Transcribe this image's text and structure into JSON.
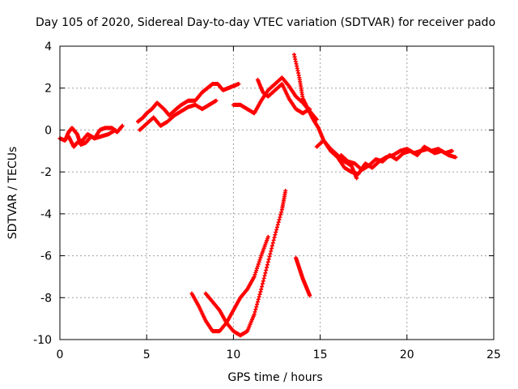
{
  "chart_data": {
    "type": "scatter",
    "title": "Day 105 of 2020, Sidereal Day-to-day VTEC variation (SDTVAR) for receiver pado",
    "xlabel": "GPS time / hours",
    "ylabel": "SDTVAR / TECUs",
    "xlim": [
      0,
      25
    ],
    "ylim": [
      -10,
      4
    ],
    "xticks": [
      0,
      5,
      10,
      15,
      20,
      25
    ],
    "yticks": [
      -10,
      -8,
      -6,
      -4,
      -2,
      0,
      2,
      4
    ],
    "grid": true,
    "marker": "plus",
    "color": "#ff0000",
    "series": [
      {
        "x": [
          0.0,
          0.3,
          0.5,
          0.7,
          1.0,
          1.2,
          1.5,
          1.8,
          2.0,
          2.3,
          2.6,
          3.0,
          3.3,
          3.6
        ],
        "y": [
          -0.4,
          -0.5,
          -0.1,
          0.1,
          -0.2,
          -0.7,
          -0.6,
          -0.3,
          -0.4,
          0.0,
          0.1,
          0.1,
          -0.1,
          0.2
        ]
      },
      {
        "x": [
          0.5,
          0.8,
          1.0,
          1.3,
          1.6,
          2.0,
          2.4,
          2.8,
          3.2
        ],
        "y": [
          -0.3,
          -0.8,
          -0.6,
          -0.5,
          -0.2,
          -0.4,
          -0.3,
          -0.2,
          0.0
        ]
      },
      {
        "x": [
          4.5,
          4.8,
          5.0,
          5.3,
          5.6,
          6.0,
          6.3,
          6.7,
          7.0,
          7.4,
          7.8,
          8.2,
          8.5,
          8.8,
          9.1,
          9.4,
          9.7,
          10.0,
          10.3
        ],
        "y": [
          0.4,
          0.6,
          0.8,
          1.0,
          1.3,
          1.0,
          0.7,
          1.0,
          1.2,
          1.4,
          1.4,
          1.8,
          2.0,
          2.2,
          2.2,
          1.9,
          2.0,
          2.1,
          2.2
        ]
      },
      {
        "x": [
          4.6,
          5.0,
          5.4,
          5.8,
          6.2,
          6.6,
          7.0,
          7.4,
          7.8,
          8.2,
          8.6,
          9.0
        ],
        "y": [
          0.0,
          0.3,
          0.6,
          0.2,
          0.4,
          0.7,
          0.9,
          1.1,
          1.2,
          1.0,
          1.2,
          1.4
        ]
      },
      {
        "x": [
          10.0,
          10.4,
          10.8,
          11.2,
          11.6,
          12.0,
          12.4,
          12.8,
          13.2,
          13.6,
          14.0,
          14.4,
          14.8
        ],
        "y": [
          1.2,
          1.2,
          1.0,
          0.8,
          1.4,
          1.9,
          2.2,
          2.5,
          2.1,
          1.6,
          1.3,
          0.9,
          0.5
        ]
      },
      {
        "x": [
          11.4,
          11.7,
          12.0,
          12.4,
          12.8,
          13.2,
          13.6,
          14.0,
          14.4
        ],
        "y": [
          2.4,
          1.8,
          1.6,
          1.9,
          2.2,
          1.5,
          1.0,
          0.8,
          1.0
        ]
      },
      {
        "x": [
          13.5,
          13.8,
          14.0,
          14.3,
          14.6,
          14.9,
          15.2,
          15.6,
          16.0,
          16.4,
          16.8,
          17.1
        ],
        "y": [
          3.6,
          2.5,
          1.5,
          1.0,
          0.5,
          0.1,
          -0.5,
          -0.9,
          -1.2,
          -1.5,
          -1.7,
          -2.3
        ]
      },
      {
        "x": [
          14.8,
          15.2,
          15.6,
          16.0,
          16.4,
          16.8,
          17.2,
          17.6,
          18.0,
          18.4,
          18.8,
          19.2,
          19.6,
          20.0,
          20.4,
          20.8,
          21.2,
          21.6,
          22.0,
          22.4,
          22.8
        ],
        "y": [
          -0.8,
          -0.5,
          -1.0,
          -1.3,
          -1.8,
          -2.0,
          -2.1,
          -1.6,
          -1.8,
          -1.5,
          -1.3,
          -1.2,
          -1.0,
          -0.9,
          -1.1,
          -1.0,
          -0.9,
          -1.1,
          -1.0,
          -1.2,
          -1.3
        ]
      },
      {
        "x": [
          16.2,
          16.6,
          17.0,
          17.4,
          17.8,
          18.2,
          18.6,
          19.0,
          19.4,
          19.8,
          20.2,
          20.6,
          21.0,
          21.4,
          21.8,
          22.2,
          22.6
        ],
        "y": [
          -1.2,
          -1.5,
          -1.6,
          -1.9,
          -1.7,
          -1.4,
          -1.5,
          -1.2,
          -1.4,
          -1.1,
          -1.0,
          -1.2,
          -0.8,
          -1.0,
          -0.9,
          -1.1,
          -1.0
        ]
      },
      {
        "x": [
          7.6,
          8.0,
          8.4,
          8.8,
          9.2,
          9.6,
          10.0,
          10.4,
          10.8,
          11.2,
          11.6,
          12.0
        ],
        "y": [
          -7.8,
          -8.4,
          -9.1,
          -9.6,
          -9.6,
          -9.2,
          -8.6,
          -8.0,
          -7.6,
          -7.0,
          -6.0,
          -5.1
        ]
      },
      {
        "x": [
          8.4,
          8.8,
          9.2,
          9.6,
          10.0,
          10.4,
          10.8,
          11.2,
          11.6,
          12.0,
          12.4,
          12.8,
          13.0
        ],
        "y": [
          -7.8,
          -8.2,
          -8.6,
          -9.2,
          -9.6,
          -9.8,
          -9.6,
          -8.8,
          -7.6,
          -6.3,
          -5.0,
          -3.8,
          -2.9
        ]
      },
      {
        "x": [
          13.6,
          13.8,
          14.0,
          14.2,
          14.4
        ],
        "y": [
          -6.1,
          -6.6,
          -7.1,
          -7.5,
          -7.9
        ]
      }
    ]
  }
}
